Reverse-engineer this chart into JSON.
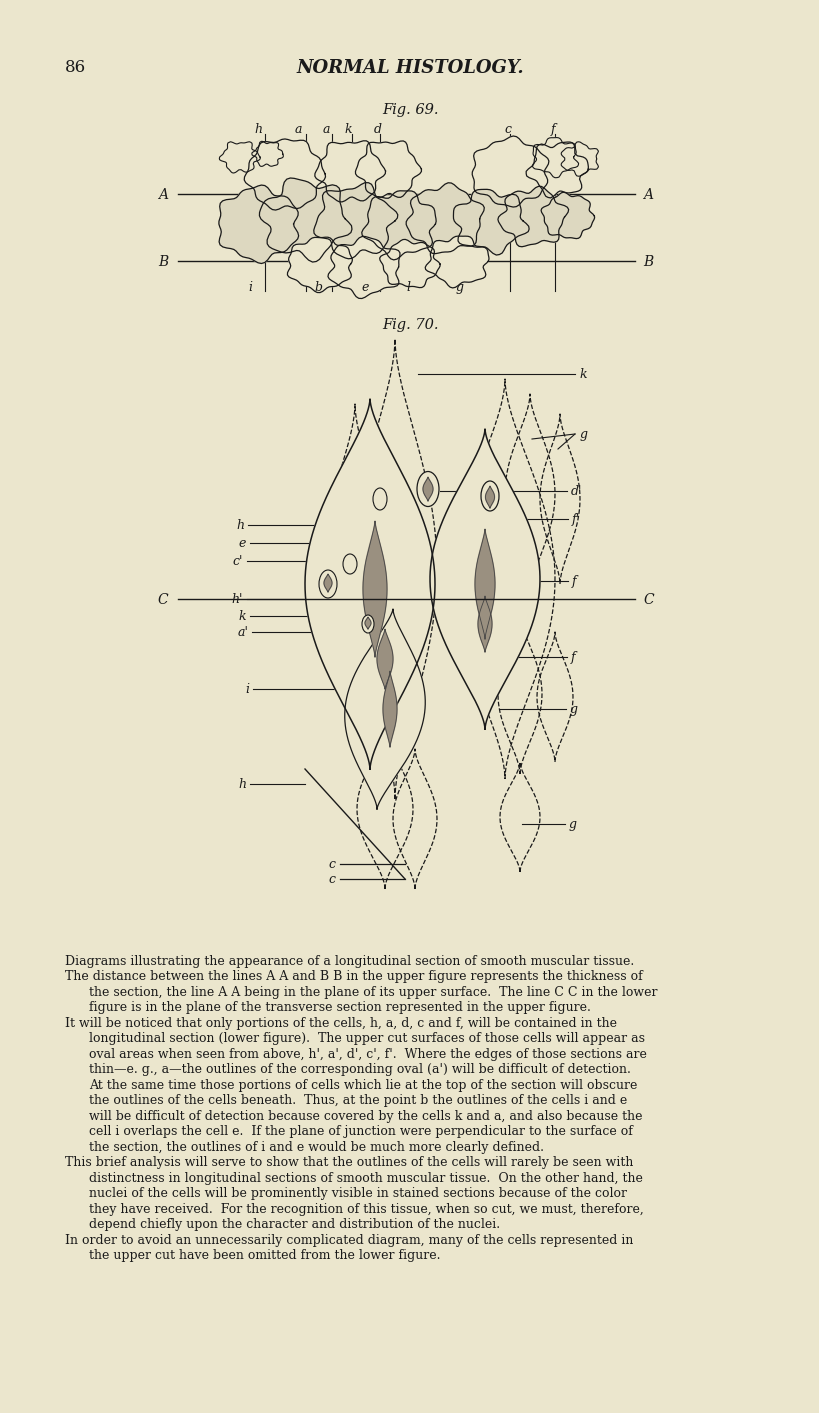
{
  "bg_color": "#EBE6CD",
  "page_number": "86",
  "page_title": "NORMAL HISTOLOGY.",
  "fig69_title": "Fig. 69.",
  "fig70_title": "Fig. 70.",
  "text_color": "#1a1a1a",
  "line_color": "#1a1a1a",
  "caption_blocks": [
    [
      "Diagrams illustrating the appearance of a longitudinal section of smooth muscular tissue."
    ],
    [
      "The distance between the lines A A and B B in the upper figure represents the thickness of",
      "the section, the line A A being in the plane of its upper surface.  The line C C in the low-",
      "figure is in the plane of the transverse section represented in the upper figure."
    ],
    [
      "It will be noticed that only portions of the cells, h, a, d, c and f, will be contained in t",
      "longitudinal section (lower figure).  The upper cut surfaces of those cells will appear",
      "oval areas when seen from above, h', a', d', c', f'.  Where the edges of those sections a",
      "thin—e. g., a—the outlines of the corresponding oval (a') will be difficult of detecti",
      "At the same time those portions of cells which lie at the top of the section will obsc",
      "the outlines of the cells beneath.  Thus, at the point b the outlines of the cells i an",
      "will be difficult of detection because covered by the cells k and a, and also because t",
      "cell i overlaps the cell e.  If the plane of junction were perpendicular to the surface",
      "the section, the outlines of i and e would be much more clearly defined."
    ],
    [
      "This brief analysis will serve to show that the outlines of the cells will rarely be seen w",
      "distinctness in longitudinal sections of smooth muscular tissue.  On the other hand, t",
      "nuclei of the cells will be prominently visible in stained sections because of the co",
      "they have received.  For the recognition of this tissue, when so cut, we must, therefo",
      "depend chiefly upon the character and distribution of the nuclei."
    ],
    [
      "In order to avoid an unnecessarily complicated diagram, many of the cells represented",
      "the upper cut have been omitted from the lower figure."
    ]
  ]
}
